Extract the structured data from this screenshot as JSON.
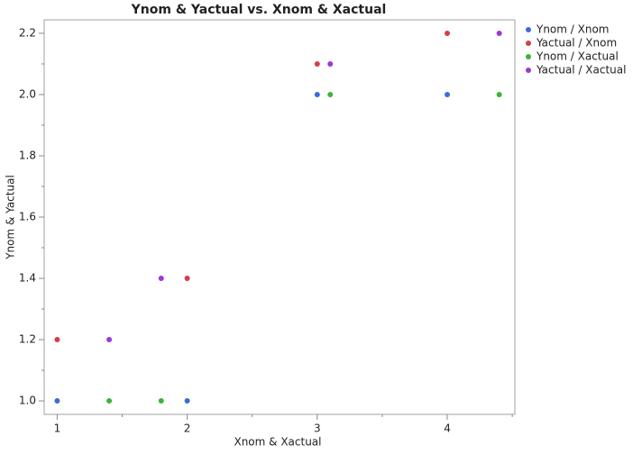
{
  "chart_data": {
    "type": "scatter",
    "title": "Ynom & Yactual vs. Xnom & Xactual",
    "x_label": "Xnom & Xactual",
    "y_label": "Ynom & Yactual",
    "xlim": [
      0.9,
      4.52
    ],
    "ylim": [
      0.956,
      2.244
    ],
    "xticks": [
      1,
      2,
      3,
      4
    ],
    "xminorticks": [
      1.5,
      2.5,
      3.5,
      4.5
    ],
    "yticks": [
      {
        "value": 1.0,
        "label": "1.0"
      },
      {
        "value": 1.2,
        "label": "1.2"
      },
      {
        "value": 1.4,
        "label": "1.4"
      },
      {
        "value": 1.6,
        "label": "1.6"
      },
      {
        "value": 1.8,
        "label": "1.8"
      },
      {
        "value": 2.0,
        "label": "2.0"
      },
      {
        "value": 2.2,
        "label": "2.2"
      }
    ],
    "yminorticks": [
      1.1,
      1.3,
      1.5,
      1.7,
      1.9,
      2.1
    ],
    "legend": "right",
    "series": [
      {
        "name": "Ynom / Xnom",
        "color": "#3c6cd6",
        "x": [
          1,
          2,
          3,
          4
        ],
        "values": [
          1.0,
          1.0,
          2.0,
          2.0
        ]
      },
      {
        "name": "Yactual / Xnom",
        "color": "#d33f4a",
        "x": [
          1,
          2,
          3,
          4
        ],
        "values": [
          1.2,
          1.4,
          2.1,
          2.2
        ]
      },
      {
        "name": "Ynom / Xactual",
        "color": "#3db33d",
        "x": [
          1.4,
          1.8,
          3.1,
          4.4
        ],
        "values": [
          1.0,
          1.0,
          2.0,
          2.0
        ]
      },
      {
        "name": "Yactual / Xactual",
        "color": "#9b38d9",
        "x": [
          1.4,
          1.8,
          3.1,
          4.4
        ],
        "values": [
          1.2,
          1.4,
          2.1,
          2.2
        ]
      }
    ]
  }
}
